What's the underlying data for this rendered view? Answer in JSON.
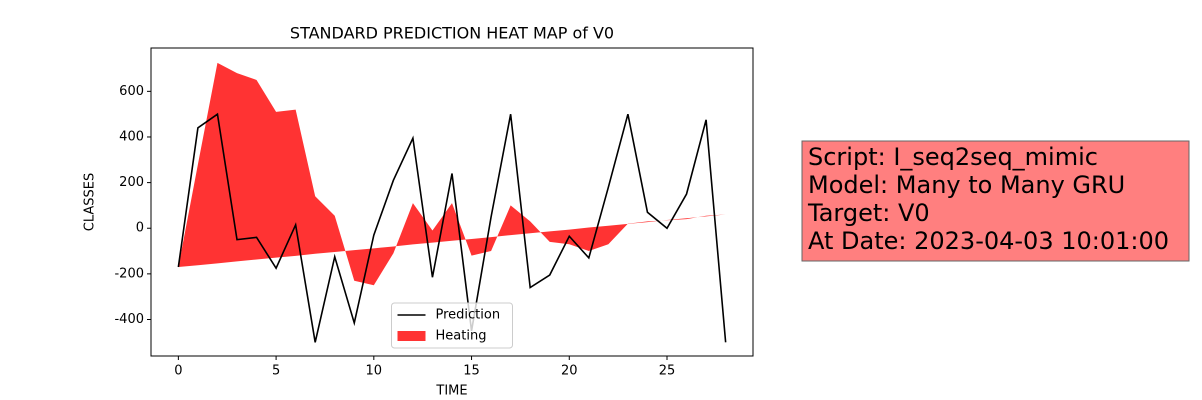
{
  "chart_data": {
    "type": "line",
    "title": "STANDARD PREDICTION HEAT MAP of V0",
    "xlabel": "TIME",
    "ylabel": "CLASSES",
    "x": [
      0,
      1,
      2,
      3,
      4,
      5,
      6,
      7,
      8,
      9,
      10,
      11,
      12,
      13,
      14,
      15,
      16,
      17,
      18,
      19,
      20,
      21,
      22,
      23,
      24,
      25,
      26,
      27,
      28
    ],
    "series": [
      {
        "name": "Prediction",
        "color": "#000000",
        "values": [
          -170,
          440,
          500,
          -50,
          -40,
          -175,
          15,
          -500,
          -125,
          -415,
          -30,
          210,
          395,
          -215,
          240,
          -450,
          50,
          500,
          -260,
          -205,
          -35,
          -130,
          180,
          500,
          70,
          0,
          150,
          475,
          -500
        ]
      }
    ],
    "area": {
      "name": "Heating",
      "color": "#ff0000",
      "opacity": 0.8,
      "values": [
        -170,
        280,
        725,
        680,
        650,
        510,
        520,
        140,
        55,
        -230,
        -250,
        -110,
        110,
        -10,
        110,
        -120,
        -100,
        100,
        30,
        -60,
        -70,
        -100,
        -70,
        20,
        30,
        35,
        40,
        55,
        60
      ],
      "base": [
        -170,
        -162,
        -154,
        -145,
        -137,
        -129,
        -121,
        -112,
        -104,
        -96,
        -88,
        -80,
        -71,
        -63,
        -55,
        -47,
        -39,
        -30,
        -22,
        -14,
        -6,
        3,
        11,
        19,
        27,
        36,
        44,
        52,
        60
      ]
    },
    "xlim": [
      -1.4,
      29.4
    ],
    "ylim": [
      -560,
      790
    ],
    "xticks": [
      0,
      5,
      10,
      15,
      20,
      25
    ],
    "yticks": [
      -400,
      -200,
      0,
      200,
      400,
      600
    ],
    "legend": "lower center"
  },
  "annotation": {
    "lines": [
      "Script: I_seq2seq_mimic",
      "Model: Many to Many GRU",
      "Target: V0",
      "At Date: 2023-04-03 10:01:00"
    ]
  }
}
